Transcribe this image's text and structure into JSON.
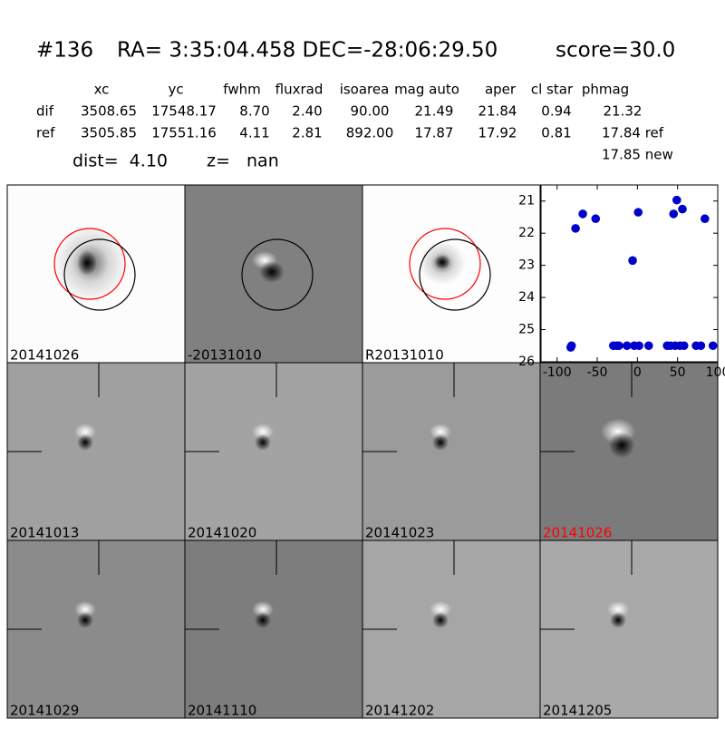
{
  "header": {
    "id": "#136",
    "coords": "RA= 3:35:04.458 DEC=-28:06:29.50",
    "score": "score=30.0"
  },
  "table": {
    "columns": [
      "xc",
      "yc",
      "fwhm",
      "fluxrad",
      "isoarea",
      "mag auto",
      "aper",
      "cl star",
      "phmag"
    ],
    "rows": [
      {
        "label": "dif",
        "cells": [
          "3508.65",
          "17548.17",
          "8.70",
          "2.40",
          "90.00",
          "21.49",
          "21.84",
          "0.94",
          "21.32"
        ]
      },
      {
        "label": "ref",
        "cells": [
          "3505.85",
          "17551.16",
          "4.11",
          "2.81",
          "892.00",
          "17.87",
          "17.92",
          "0.81",
          "17.84 ref"
        ]
      }
    ],
    "extra": "17.85 new"
  },
  "summary": {
    "dist": "dist=  4.10",
    "z": "z=   nan"
  },
  "panels": [
    "20141026",
    "-20131010",
    "R20131010",
    "20141013",
    "20141020",
    "20141023",
    "20141026",
    "20141029",
    "20141110",
    "20141202",
    "20141205"
  ],
  "chart_data": {
    "type": "scatter",
    "xlim": [
      -120,
      100
    ],
    "ylim": [
      26,
      20.5
    ],
    "xticks": [
      -100,
      -50,
      0,
      50,
      100
    ],
    "yticks": [
      21,
      22,
      23,
      24,
      25,
      26
    ],
    "series": [
      {
        "color": "#0000cc",
        "x": [
          -83,
          -82,
          -77,
          -68,
          -52,
          -30,
          -26,
          -23,
          -13,
          -6,
          -4,
          1,
          2,
          14,
          37,
          41,
          45,
          47,
          49,
          53,
          56,
          58,
          73,
          79,
          84,
          94
        ],
        "values": [
          25.55,
          25.5,
          21.85,
          21.4,
          21.55,
          25.5,
          25.5,
          25.5,
          25.5,
          22.85,
          25.5,
          21.35,
          25.5,
          25.5,
          25.5,
          25.5,
          21.4,
          25.5,
          20.97,
          25.5,
          21.25,
          25.5,
          25.5,
          25.5,
          21.55,
          25.5
        ],
        "errors": [
          0.03,
          0.03,
          0.1,
          0.03,
          0.03,
          0.03,
          0.03,
          0.03,
          0.03,
          0.1,
          0.03,
          0.03,
          0.03,
          0.03,
          0.03,
          0.03,
          0.03,
          0.03,
          0.03,
          0.03,
          0.03,
          0.03,
          0.03,
          0.03,
          0.03,
          0.03
        ]
      }
    ]
  }
}
